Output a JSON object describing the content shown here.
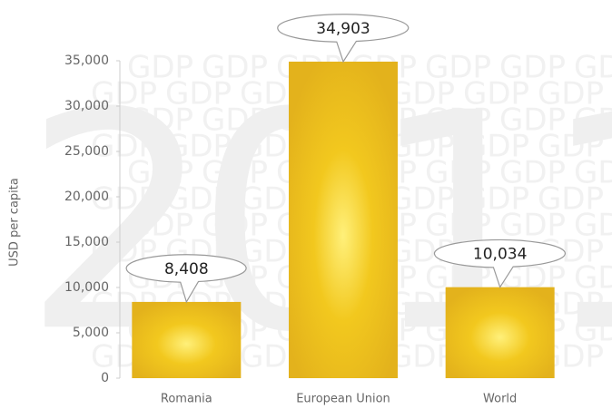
{
  "chart_data": {
    "type": "bar",
    "ylabel": "USD per capita",
    "watermark": "2011",
    "watermark_pattern": "GDP",
    "categories": [
      "Romania",
      "European Union",
      "World"
    ],
    "values": [
      8408,
      34903,
      10034
    ],
    "value_labels": [
      "8,408",
      "34,903",
      "10,034"
    ],
    "color": "#e3b21c",
    "ylim": [
      0,
      35000
    ],
    "yticks": [
      0,
      {
        "value": 5000,
        "label": "5,000"
      },
      {
        "value": 10000,
        "label": "10,000"
      },
      {
        "value": 15000,
        "label": "15,000"
      },
      {
        "value": 20000,
        "label": "20,000"
      },
      {
        "value": 25000,
        "label": "25,000"
      },
      {
        "value": 30000,
        "label": "30,000"
      },
      {
        "value": 35000,
        "label": "35,000"
      }
    ],
    "grid": false
  }
}
